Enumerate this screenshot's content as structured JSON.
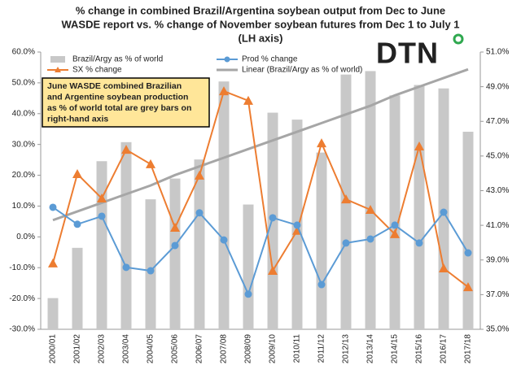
{
  "chart_data": {
    "type": "combo",
    "title": [
      "% change in combined Brazil/Argentina soybean output from Dec to June",
      "WASDE report vs. % change of November soybean futures from Dec 1 to July 1",
      "(LH axis)"
    ],
    "logo": "DTN",
    "annotation": [
      "June WASDE combined Brazilian",
      "and Argentine soybean production",
      "as % of world total are grey bars on",
      "right-hand axis"
    ],
    "categories": [
      "2000/01",
      "2001/02",
      "2002/03",
      "2003/04",
      "2004/05",
      "2005/06",
      "2006/07",
      "2007/08",
      "2008/09",
      "2009/10",
      "2010/11",
      "2011/12",
      "2012/13",
      "2013/14",
      "2014/15",
      "2015/16",
      "2016/17",
      "2017/18"
    ],
    "series": [
      {
        "name": "Brazil/Argy as % of world",
        "kind": "bar",
        "axis": "y2",
        "color": "#c8c8c8",
        "values": [
          36.8,
          39.7,
          44.7,
          45.8,
          42.5,
          43.7,
          44.8,
          49.3,
          42.2,
          47.5,
          47.1,
          45.2,
          49.7,
          49.9,
          48.5,
          49.1,
          48.9,
          46.4
        ]
      },
      {
        "name": "SX % change",
        "kind": "line",
        "marker": "triangle",
        "color": "#ed7d31",
        "values": [
          -8.6,
          20.4,
          12.5,
          28.3,
          23.6,
          3,
          19.9,
          47.3,
          44.2,
          -11,
          2,
          30.4,
          12.2,
          8.8,
          0.9,
          29.4,
          -10.2,
          -16.3
        ]
      },
      {
        "name": "Prod % change",
        "kind": "line",
        "marker": "circle",
        "color": "#5b9bd5",
        "values": [
          9.6,
          4.1,
          6.7,
          -9.9,
          -11,
          -2.8,
          7.8,
          -1,
          -18.6,
          6.2,
          3.8,
          -15.5,
          -2,
          -0.7,
          3.8,
          -2,
          8,
          -5.2
        ]
      },
      {
        "name": "Linear (Brazil/Argy as % of world)",
        "kind": "trend",
        "axis": "y2",
        "color": "#a6a6a6",
        "values": [
          41.3,
          41.8,
          42.3,
          42.8,
          43.3,
          43.9,
          44.4,
          44.9,
          45.4,
          45.9,
          46.4,
          46.9,
          47.4,
          47.9,
          48.5,
          49.0,
          49.5,
          50.0
        ]
      }
    ],
    "ylim": [
      -30,
      60
    ],
    "yticks": [
      {
        "value": -30,
        "label": "-30.0%"
      },
      {
        "value": -20,
        "label": "-20.0%"
      },
      {
        "value": -10,
        "label": "-10.0%"
      },
      {
        "value": 0,
        "label": "0.0%"
      },
      {
        "value": 10,
        "label": "10.0%"
      },
      {
        "value": 20,
        "label": "20.0%"
      },
      {
        "value": 30,
        "label": "30.0%"
      },
      {
        "value": 40,
        "label": "40.0%"
      },
      {
        "value": 50,
        "label": "50.0%"
      },
      {
        "value": 60,
        "label": "60.0%"
      }
    ],
    "y2lim": [
      35,
      51
    ],
    "y2ticks": [
      {
        "value": 35,
        "label": "35.0%"
      },
      {
        "value": 37,
        "label": "37.0%"
      },
      {
        "value": 39,
        "label": "39.0%"
      },
      {
        "value": 41,
        "label": "41.0%"
      },
      {
        "value": 43,
        "label": "43.0%"
      },
      {
        "value": 45,
        "label": "45.0%"
      },
      {
        "value": 47,
        "label": "47.0%"
      },
      {
        "value": 49,
        "label": "49.0%"
      },
      {
        "value": 51,
        "label": "51.0%"
      }
    ]
  }
}
